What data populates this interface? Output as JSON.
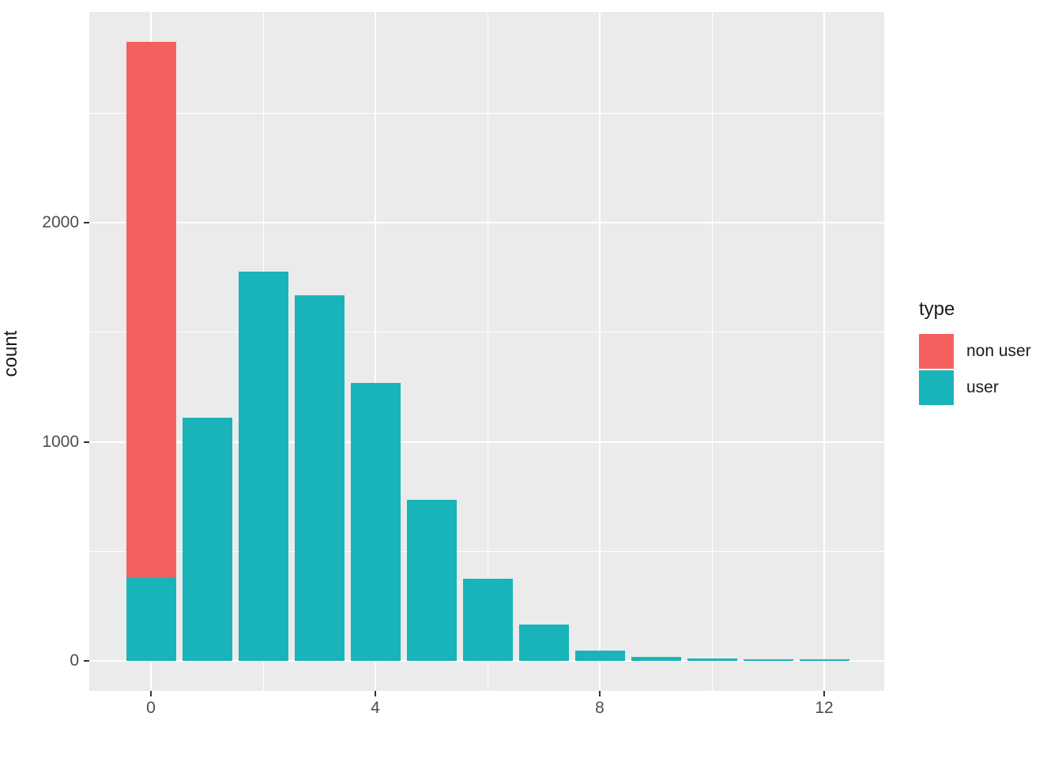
{
  "chart_data": {
    "type": "bar",
    "subtype": "stacked-histogram",
    "title": "",
    "xlabel": "",
    "ylabel": "count",
    "x": [
      0,
      1,
      2,
      3,
      4,
      5,
      6,
      7,
      8,
      9,
      10,
      11,
      12
    ],
    "series": [
      {
        "name": "non user",
        "color": "#F4605E",
        "values": [
          2445,
          0,
          0,
          0,
          0,
          0,
          0,
          0,
          0,
          0,
          0,
          0,
          0
        ]
      },
      {
        "name": "user",
        "color": "#19B3BA",
        "values": [
          380,
          1110,
          1775,
          1670,
          1270,
          735,
          375,
          165,
          47,
          18,
          11,
          6,
          7
        ]
      }
    ],
    "stack_order_bottom_to_top": [
      "user",
      "non user"
    ],
    "y_ticks": [
      0,
      1000,
      2000
    ],
    "y_minor_gridlines": [
      500,
      1500,
      2500
    ],
    "x_ticks": [
      0,
      4,
      8,
      12
    ],
    "x_minor_gridlines": [
      2,
      6,
      10
    ],
    "ylim": [
      -142,
      2960
    ],
    "xlim": [
      -1.1,
      13.1
    ],
    "grid": true,
    "legend_position": "right",
    "panel_bg": "#EBEBEB",
    "grid_color": "#FFFFFF",
    "tick_text_color": "#4D4D4D"
  },
  "axes": {
    "y_label": "count",
    "y_tick_labels": [
      "0",
      "1000",
      "2000"
    ],
    "x_tick_labels": [
      "0",
      "4",
      "8",
      "12"
    ]
  },
  "legend": {
    "title": "type",
    "items": [
      {
        "label": "non user",
        "color": "#F4605E"
      },
      {
        "label": "user",
        "color": "#19B3BA"
      }
    ]
  }
}
